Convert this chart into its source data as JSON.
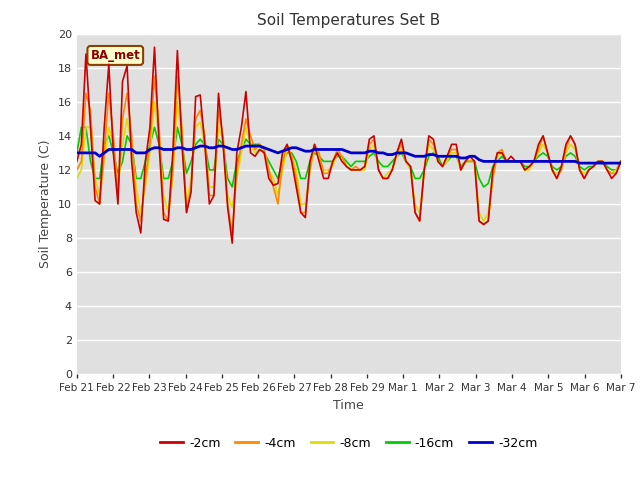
{
  "title": "Soil Temperatures Set B",
  "xlabel": "Time",
  "ylabel": "Soil Temperature (C)",
  "ylim": [
    0,
    20
  ],
  "yticks": [
    0,
    2,
    4,
    6,
    8,
    10,
    12,
    14,
    16,
    18,
    20
  ],
  "annotation": "BA_met",
  "fig_bg_color": "#ffffff",
  "plot_bg_color": "#e0e0e0",
  "colors": {
    "-2cm": "#cc0000",
    "-4cm": "#ff8800",
    "-8cm": "#dddd00",
    "-16cm": "#00cc00",
    "-32cm": "#0000cc"
  },
  "x_labels": [
    "Feb 21",
    "Feb 22",
    "Feb 23",
    "Feb 24",
    "Feb 25",
    "Feb 26",
    "Feb 27",
    "Feb 28",
    "Feb 29",
    "Mar 1",
    "Mar 2",
    "Mar 3",
    "Mar 4",
    "Mar 5",
    "Mar 6",
    "Mar 7"
  ],
  "n_points": 120,
  "data_2cm": [
    12.5,
    13.5,
    18.8,
    14.5,
    10.2,
    10.0,
    14.5,
    18.2,
    13.0,
    10.0,
    17.2,
    18.1,
    12.5,
    9.5,
    8.3,
    12.5,
    14.5,
    19.2,
    13.5,
    9.1,
    9.0,
    13.0,
    19.0,
    13.5,
    9.5,
    10.7,
    16.3,
    16.4,
    13.5,
    10.0,
    10.5,
    16.5,
    13.5,
    9.8,
    7.7,
    13.0,
    14.5,
    16.6,
    13.0,
    12.8,
    13.2,
    13.0,
    11.5,
    11.1,
    11.2,
    13.0,
    13.5,
    12.5,
    11.0,
    9.5,
    9.2,
    12.5,
    13.5,
    12.5,
    11.5,
    11.5,
    12.5,
    13.0,
    12.5,
    12.2,
    12.0,
    12.0,
    12.0,
    12.2,
    13.8,
    14.0,
    12.0,
    11.5,
    11.5,
    12.0,
    13.0,
    13.8,
    12.5,
    12.2,
    9.5,
    9.0,
    12.0,
    14.0,
    13.8,
    12.5,
    12.2,
    12.8,
    13.5,
    13.5,
    12.0,
    12.5,
    12.8,
    12.5,
    9.0,
    8.8,
    9.0,
    12.0,
    13.0,
    13.0,
    12.5,
    12.8,
    12.5,
    12.5,
    12.0,
    12.2,
    12.5,
    13.5,
    14.0,
    13.0,
    12.0,
    11.5,
    12.2,
    13.5,
    14.0,
    13.5,
    12.0,
    11.5,
    12.0,
    12.2,
    12.5,
    12.5,
    12.0,
    11.5,
    11.8,
    12.5
  ],
  "data_4cm": [
    12.0,
    12.5,
    16.5,
    15.5,
    11.0,
    10.0,
    13.0,
    16.5,
    14.0,
    10.5,
    15.0,
    16.5,
    14.0,
    10.0,
    9.0,
    11.5,
    13.5,
    17.5,
    14.5,
    9.5,
    9.0,
    12.0,
    17.5,
    14.5,
    9.5,
    11.0,
    15.0,
    15.5,
    14.0,
    10.5,
    10.5,
    15.5,
    14.0,
    10.0,
    8.2,
    12.0,
    13.5,
    15.0,
    14.0,
    13.2,
    13.5,
    13.2,
    12.0,
    11.0,
    10.0,
    12.5,
    13.5,
    12.8,
    11.5,
    9.5,
    9.5,
    12.0,
    13.5,
    13.0,
    11.8,
    11.8,
    12.5,
    13.2,
    12.8,
    12.2,
    12.0,
    12.2,
    12.0,
    12.2,
    13.5,
    13.8,
    12.0,
    11.5,
    11.5,
    12.0,
    13.0,
    13.5,
    12.5,
    12.2,
    9.5,
    9.0,
    12.0,
    13.8,
    13.5,
    12.5,
    12.2,
    12.8,
    13.2,
    13.2,
    12.0,
    12.5,
    12.5,
    12.5,
    9.0,
    8.8,
    9.0,
    11.5,
    13.0,
    13.2,
    12.5,
    12.5,
    12.5,
    12.5,
    12.0,
    12.2,
    12.5,
    13.2,
    14.0,
    13.0,
    12.0,
    11.5,
    12.0,
    13.2,
    14.0,
    13.5,
    12.0,
    11.5,
    12.0,
    12.2,
    12.5,
    12.5,
    12.0,
    11.8,
    11.8,
    12.5
  ],
  "data_8cm": [
    11.5,
    12.0,
    14.5,
    14.5,
    11.5,
    10.5,
    12.5,
    14.5,
    13.5,
    11.0,
    13.5,
    15.0,
    13.5,
    11.0,
    9.5,
    11.0,
    13.0,
    16.0,
    14.0,
    10.5,
    9.5,
    11.5,
    16.0,
    14.0,
    10.0,
    11.5,
    14.5,
    14.8,
    13.5,
    11.0,
    11.0,
    14.5,
    13.8,
    10.5,
    9.8,
    11.5,
    13.0,
    14.5,
    13.5,
    13.0,
    13.2,
    13.2,
    12.0,
    11.5,
    10.5,
    12.0,
    13.2,
    12.8,
    12.0,
    10.0,
    10.0,
    12.0,
    13.2,
    12.8,
    12.0,
    12.0,
    12.2,
    13.0,
    12.8,
    12.2,
    12.0,
    12.0,
    12.0,
    12.0,
    13.2,
    13.5,
    12.0,
    11.5,
    11.8,
    12.0,
    12.8,
    13.2,
    12.5,
    12.0,
    10.0,
    9.5,
    12.0,
    13.5,
    13.2,
    12.5,
    12.2,
    12.5,
    13.0,
    13.0,
    12.0,
    12.5,
    12.5,
    12.5,
    9.5,
    9.0,
    9.5,
    11.5,
    12.8,
    13.0,
    12.5,
    12.5,
    12.5,
    12.5,
    12.0,
    12.0,
    12.5,
    13.0,
    13.5,
    13.0,
    12.0,
    11.8,
    12.0,
    13.0,
    13.5,
    13.2,
    12.0,
    11.8,
    12.0,
    12.2,
    12.5,
    12.5,
    12.0,
    11.8,
    12.0,
    12.5
  ],
  "data_16cm": [
    13.0,
    14.5,
    14.5,
    12.5,
    11.5,
    11.5,
    13.5,
    14.0,
    13.0,
    11.8,
    12.5,
    14.0,
    13.5,
    11.5,
    11.5,
    12.5,
    13.5,
    14.5,
    13.5,
    11.5,
    11.5,
    12.5,
    14.5,
    13.5,
    11.8,
    12.5,
    13.5,
    13.8,
    13.5,
    12.0,
    12.0,
    13.8,
    13.5,
    11.5,
    11.0,
    12.5,
    13.2,
    13.8,
    13.5,
    13.5,
    13.5,
    13.0,
    12.5,
    12.0,
    11.5,
    12.5,
    13.0,
    13.0,
    12.5,
    11.5,
    11.5,
    12.5,
    13.0,
    12.8,
    12.5,
    12.5,
    12.5,
    12.8,
    12.8,
    12.5,
    12.2,
    12.5,
    12.5,
    12.5,
    12.8,
    13.0,
    12.5,
    12.2,
    12.2,
    12.5,
    12.8,
    13.0,
    12.5,
    12.2,
    11.5,
    11.5,
    12.0,
    12.8,
    13.0,
    12.8,
    12.2,
    12.5,
    12.8,
    12.8,
    12.2,
    12.5,
    12.5,
    12.5,
    11.5,
    11.0,
    11.2,
    12.2,
    12.5,
    12.8,
    12.5,
    12.5,
    12.5,
    12.5,
    12.2,
    12.2,
    12.5,
    12.8,
    13.0,
    12.8,
    12.2,
    12.0,
    12.2,
    12.8,
    13.0,
    12.8,
    12.2,
    12.0,
    12.2,
    12.2,
    12.5,
    12.5,
    12.2,
    12.0,
    12.0,
    12.5
  ],
  "data_32cm": [
    13.0,
    13.0,
    13.0,
    13.0,
    13.0,
    12.8,
    13.0,
    13.2,
    13.2,
    13.2,
    13.2,
    13.2,
    13.2,
    13.0,
    13.0,
    13.0,
    13.2,
    13.3,
    13.3,
    13.2,
    13.2,
    13.2,
    13.3,
    13.3,
    13.2,
    13.2,
    13.3,
    13.4,
    13.4,
    13.3,
    13.3,
    13.4,
    13.4,
    13.3,
    13.2,
    13.2,
    13.3,
    13.4,
    13.4,
    13.4,
    13.4,
    13.3,
    13.2,
    13.1,
    13.0,
    13.1,
    13.2,
    13.3,
    13.3,
    13.2,
    13.1,
    13.1,
    13.2,
    13.2,
    13.2,
    13.2,
    13.2,
    13.2,
    13.2,
    13.1,
    13.0,
    13.0,
    13.0,
    13.0,
    13.1,
    13.1,
    13.0,
    13.0,
    12.9,
    12.9,
    13.0,
    13.0,
    13.0,
    12.9,
    12.8,
    12.8,
    12.8,
    12.9,
    12.9,
    12.8,
    12.8,
    12.8,
    12.8,
    12.8,
    12.7,
    12.7,
    12.8,
    12.8,
    12.6,
    12.5,
    12.5,
    12.5,
    12.5,
    12.5,
    12.5,
    12.5,
    12.5,
    12.5,
    12.5,
    12.5,
    12.5,
    12.5,
    12.5,
    12.5,
    12.5,
    12.5,
    12.5,
    12.5,
    12.5,
    12.5,
    12.4,
    12.4,
    12.4,
    12.4,
    12.4,
    12.4,
    12.4,
    12.4,
    12.4,
    12.4
  ]
}
